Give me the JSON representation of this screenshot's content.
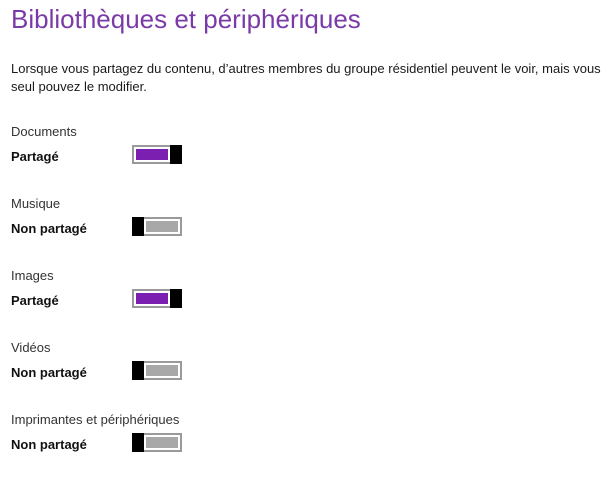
{
  "page": {
    "title": "Bibliothèques et périphériques",
    "description": "Lorsque vous partagez du contenu, d’autres membres du groupe résidentiel peuvent le voir, mais vous seul pouvez le modifier."
  },
  "libraries": [
    {
      "name": "Documents",
      "status": "Partagé",
      "shared": true
    },
    {
      "name": "Musique",
      "status": "Non partagé",
      "shared": false
    },
    {
      "name": "Images",
      "status": "Partagé",
      "shared": true
    },
    {
      "name": "Vidéos",
      "status": "Non partagé",
      "shared": false
    },
    {
      "name": "Imprimantes et périphériques",
      "status": "Non partagé",
      "shared": false
    }
  ],
  "colors": {
    "accent": "#7a1fb0",
    "title": "#7a3aa8",
    "toggle_off": "#a8a8a8",
    "knob": "#000000"
  }
}
